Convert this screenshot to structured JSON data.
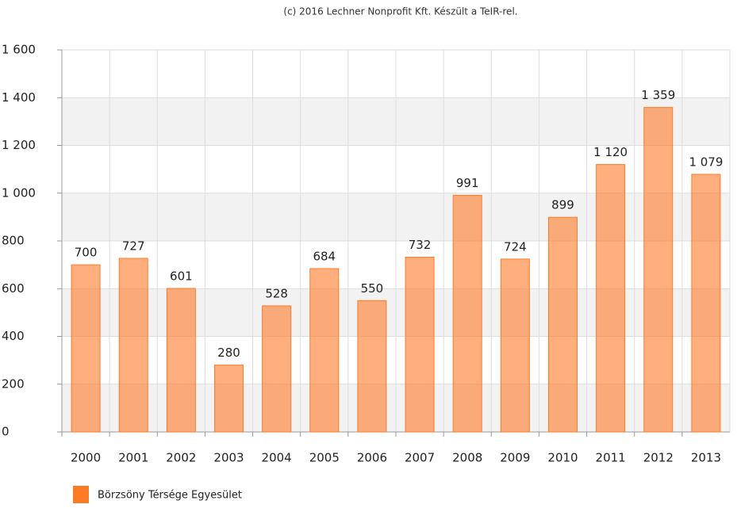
{
  "chart_data": {
    "type": "bar",
    "title": "(c) 2016 Lechner Nonprofit Kft. Készült a TeIR-rel.",
    "categories": [
      "2000",
      "2001",
      "2002",
      "2003",
      "2004",
      "2005",
      "2006",
      "2007",
      "2008",
      "2009",
      "2010",
      "2011",
      "2012",
      "2013"
    ],
    "series": [
      {
        "name": "Börzsöny Térsége Egyesület",
        "color": "#ff7a26",
        "values": [
          700,
          727,
          601,
          280,
          528,
          684,
          550,
          732,
          991,
          724,
          899,
          1120,
          1359,
          1079
        ],
        "value_labels": [
          "700",
          "727",
          "601",
          "280",
          "528",
          "684",
          "550",
          "732",
          "991",
          "724",
          "899",
          "1 120",
          "1 359",
          "1 079"
        ]
      }
    ],
    "ylim": [
      0,
      1600
    ],
    "yticks": [
      0,
      200,
      400,
      600,
      800,
      {
        "value": 1000,
        "label": "1 000"
      },
      {
        "value": 1200,
        "label": "1 200"
      },
      {
        "value": 1400,
        "label": "1 400"
      },
      {
        "value": 1600,
        "label": "1 600"
      }
    ],
    "grid": true
  }
}
